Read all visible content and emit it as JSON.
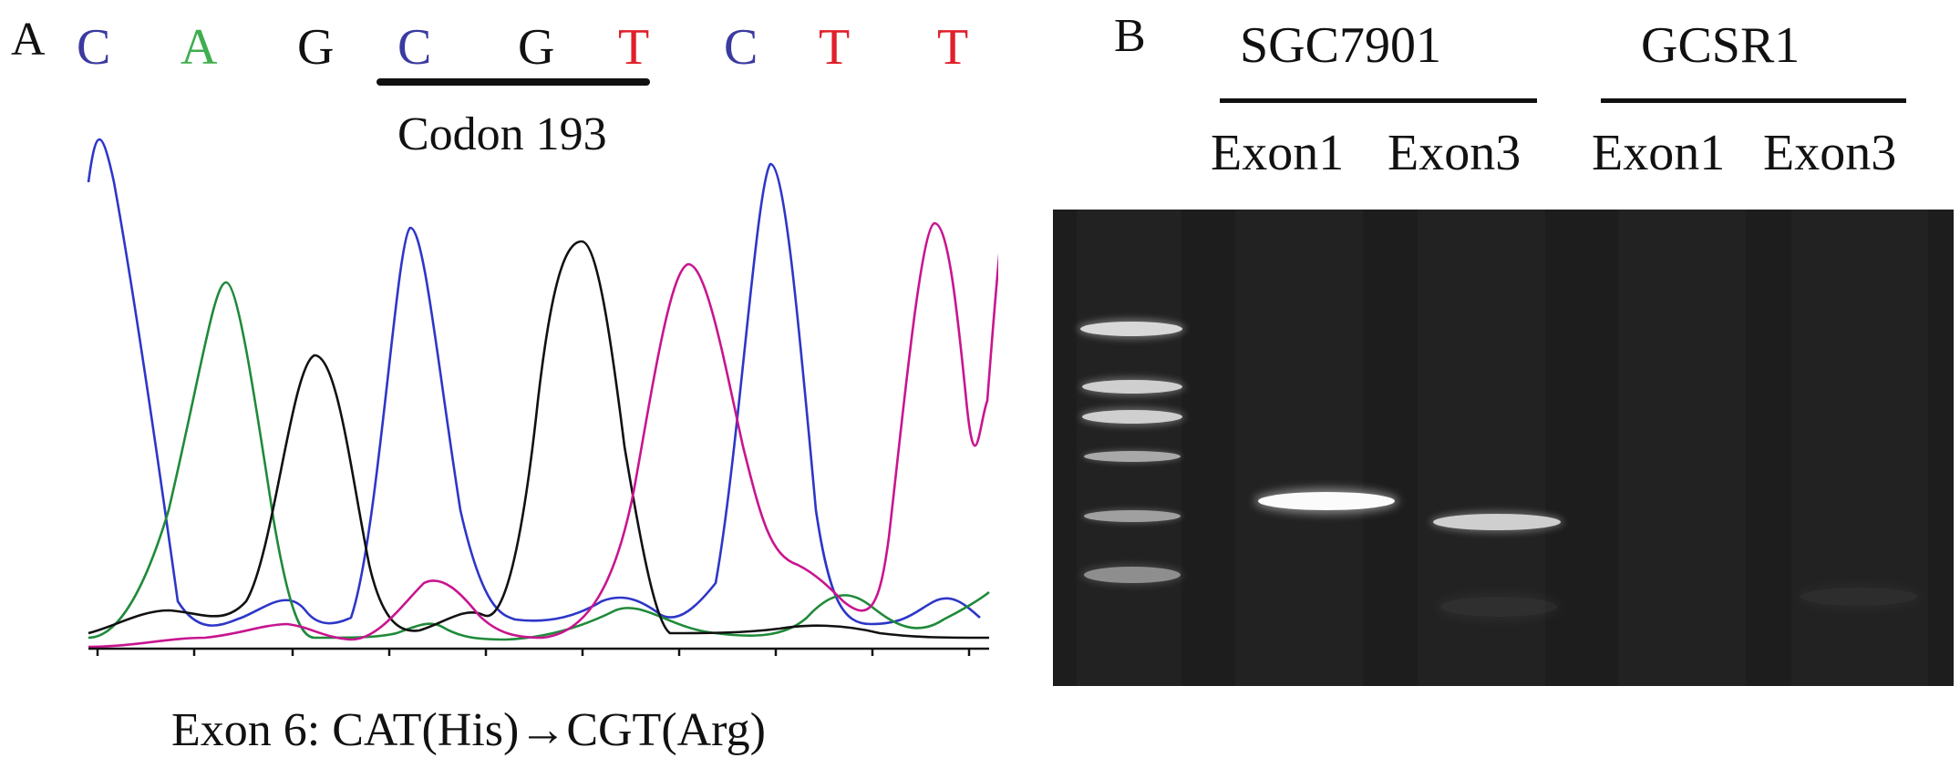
{
  "panel_a": {
    "letter": "A",
    "bases": [
      {
        "letter": "C",
        "color": "#3a3aa0"
      },
      {
        "letter": "A",
        "color": "#3fae4f"
      },
      {
        "letter": "G",
        "color": "#111111"
      },
      {
        "letter": "C",
        "color": "#3a3aa0"
      },
      {
        "letter": "G",
        "color": "#111111"
      },
      {
        "letter": "T",
        "color": "#e0202a"
      },
      {
        "letter": "C",
        "color": "#3a3aa0"
      },
      {
        "letter": "T",
        "color": "#e0202a"
      },
      {
        "letter": "T",
        "color": "#e0202a"
      }
    ],
    "codon_label": "Codon 193",
    "caption": "Exon 6: CAT(His)→CGT(Arg)",
    "trace_colors": {
      "C": "#2e36c8",
      "A": "#1f8a3a",
      "G": "#111111",
      "T": "#c8158f"
    }
  },
  "panel_b": {
    "letter": "B",
    "cell_lines": [
      "SGC7901",
      "GCSR1"
    ],
    "lanes": [
      "Exon1",
      "Exon3",
      "Exon1",
      "Exon3"
    ]
  }
}
